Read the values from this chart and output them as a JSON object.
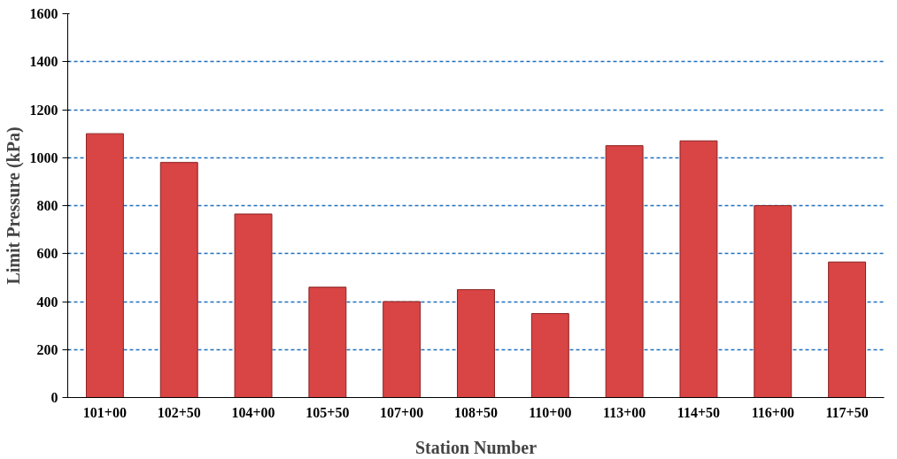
{
  "chart_data": {
    "type": "bar",
    "xlabel": "Station Number",
    "ylabel": "Limit Pressure (kPa)",
    "categories": [
      "101+00",
      "102+50",
      "104+00",
      "105+50",
      "107+00",
      "108+50",
      "110+00",
      "113+00",
      "114+50",
      "116+00",
      "117+50"
    ],
    "values": [
      1100,
      980,
      765,
      460,
      400,
      450,
      350,
      1050,
      1070,
      800,
      565
    ],
    "color": "#d94444",
    "ylim": [
      0,
      1600
    ],
    "yticks": [
      0,
      200,
      400,
      600,
      800,
      1000,
      1200,
      1400,
      1600
    ],
    "grid": "y"
  }
}
